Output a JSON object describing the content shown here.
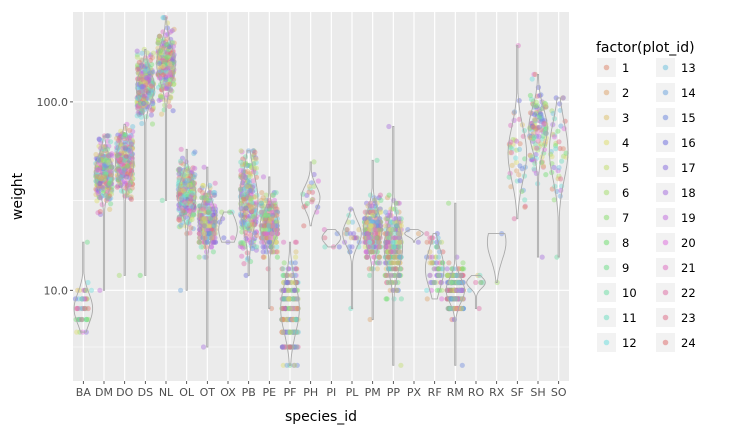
{
  "chart_data": {
    "type": "scatter",
    "geoms": [
      "jitter",
      "violin"
    ],
    "x_label": "species_id",
    "y_label": "weight",
    "y_scale": "log10",
    "y_ticks": [
      {
        "value": 10,
        "label": "10.0"
      },
      {
        "value": 100,
        "label": "100.0"
      }
    ],
    "ylim": [
      3.3,
      300
    ],
    "grid": true,
    "legend_placement": "right",
    "legend": {
      "title": "factor(plot_id)",
      "entries": [
        "1",
        "2",
        "3",
        "4",
        "5",
        "6",
        "7",
        "8",
        "9",
        "10",
        "11",
        "12",
        "13",
        "14",
        "15",
        "16",
        "17",
        "18",
        "19",
        "20",
        "21",
        "22",
        "23",
        "24"
      ]
    },
    "colors": {
      "panel": "#ebebeb",
      "grid": "#ffffff",
      "violin": "#aaaaaa"
    },
    "categories": [
      "BA",
      "DM",
      "DO",
      "DS",
      "NL",
      "OL",
      "OT",
      "OX",
      "PB",
      "PE",
      "PF",
      "PH",
      "PI",
      "PL",
      "PM",
      "PP",
      "PX",
      "RF",
      "RM",
      "RO",
      "RX",
      "SF",
      "SH",
      "SO"
    ],
    "series": [
      {
        "species": "BA",
        "n": 45,
        "min": 6,
        "q1": 7,
        "median": 8,
        "q3": 9,
        "max": 18
      },
      {
        "species": "DM",
        "n": 900,
        "min": 10,
        "q1": 37,
        "median": 42,
        "q3": 48,
        "max": 66
      },
      {
        "species": "DO",
        "n": 500,
        "min": 12,
        "q1": 41,
        "median": 48,
        "q3": 54,
        "max": 76
      },
      {
        "species": "DS",
        "n": 500,
        "min": 12,
        "q1": 105,
        "median": 120,
        "q3": 134,
        "max": 190
      },
      {
        "species": "NL",
        "n": 600,
        "min": 30,
        "q1": 138,
        "median": 159,
        "q3": 186,
        "max": 280
      },
      {
        "species": "OL",
        "n": 400,
        "min": 10,
        "q1": 28,
        "median": 32,
        "q3": 36,
        "max": 56
      },
      {
        "species": "OT",
        "n": 600,
        "min": 5,
        "q1": 21,
        "median": 24,
        "q3": 27,
        "max": 45
      },
      {
        "species": "OX",
        "n": 8,
        "min": 18,
        "q1": 19,
        "median": 21,
        "q3": 24,
        "max": 26
      },
      {
        "species": "PB",
        "n": 800,
        "min": 12,
        "q1": 24,
        "median": 30,
        "q3": 37,
        "max": 55
      },
      {
        "species": "PE",
        "n": 600,
        "min": 8,
        "q1": 20,
        "median": 22,
        "q3": 25,
        "max": 40
      },
      {
        "species": "PF",
        "n": 450,
        "min": 4,
        "q1": 6,
        "median": 8,
        "q3": 9,
        "max": 18
      },
      {
        "species": "PH",
        "n": 20,
        "min": 22,
        "q1": 28,
        "median": 31,
        "q3": 34,
        "max": 48
      },
      {
        "species": "PI",
        "n": 6,
        "min": 17,
        "q1": 18,
        "median": 19,
        "q3": 20,
        "max": 21
      },
      {
        "species": "PL",
        "n": 25,
        "min": 8,
        "q1": 18,
        "median": 20,
        "q3": 22,
        "max": 27
      },
      {
        "species": "PM",
        "n": 600,
        "min": 7,
        "q1": 18,
        "median": 21,
        "q3": 24,
        "max": 49
      },
      {
        "species": "PP",
        "n": 900,
        "min": 4,
        "q1": 14,
        "median": 17,
        "q3": 20,
        "max": 74
      },
      {
        "species": "PX",
        "n": 3,
        "min": 18,
        "q1": 19,
        "median": 20,
        "q3": 20,
        "max": 21
      },
      {
        "species": "RF",
        "n": 70,
        "min": 9,
        "q1": 11,
        "median": 13,
        "q3": 15,
        "max": 20
      },
      {
        "species": "RM",
        "n": 900,
        "min": 4,
        "q1": 9,
        "median": 10,
        "q3": 11,
        "max": 29
      },
      {
        "species": "RO",
        "n": 8,
        "min": 8,
        "q1": 10,
        "median": 11,
        "q3": 11,
        "max": 12
      },
      {
        "species": "RX",
        "n": 2,
        "min": 11,
        "q1": 15,
        "median": 18,
        "q3": 20,
        "max": 20
      },
      {
        "species": "SF",
        "n": 45,
        "min": 24,
        "q1": 44,
        "median": 53,
        "q3": 68,
        "max": 199
      },
      {
        "species": "SH",
        "n": 130,
        "min": 15,
        "q1": 60,
        "median": 72,
        "q3": 84,
        "max": 140
      },
      {
        "species": "SO",
        "n": 45,
        "min": 15,
        "q1": 44,
        "median": 55,
        "q3": 70,
        "max": 105
      }
    ]
  }
}
